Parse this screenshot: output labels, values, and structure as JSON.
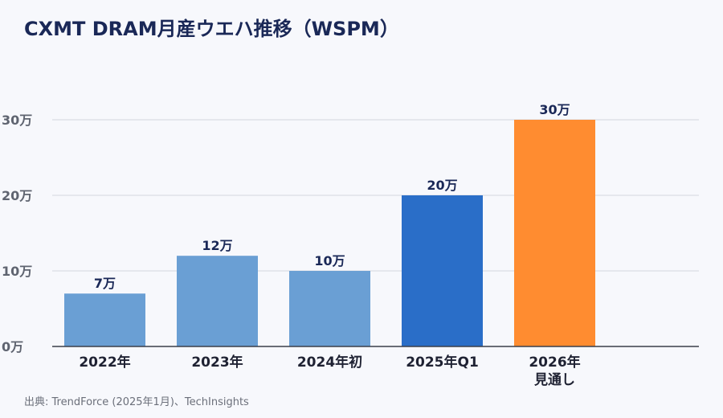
{
  "title": "CXMT DRAM月産ウエハ推移（WSPM）",
  "source": "出典: TrendForce (2025年1月)、TechInsights",
  "chart_data": {
    "type": "bar",
    "categories": [
      "2022年",
      "2023年",
      "2024年初",
      "2025年Q1",
      "2026年\n見通し"
    ],
    "values": [
      70000,
      120000,
      100000,
      200000,
      300000
    ],
    "data_labels": [
      "7万",
      "12万",
      "10万",
      "20万",
      "30万"
    ],
    "bar_colors": [
      "#6a9fd4",
      "#6a9fd4",
      "#6a9fd4",
      "#2a6ec8",
      "#ff8c30"
    ],
    "yticks": [
      0,
      100000,
      200000,
      300000
    ],
    "ytick_labels": [
      "0万",
      "10万",
      "20万",
      "30万"
    ],
    "ylim": [
      0,
      300000
    ],
    "grid": true,
    "legend": "none"
  }
}
